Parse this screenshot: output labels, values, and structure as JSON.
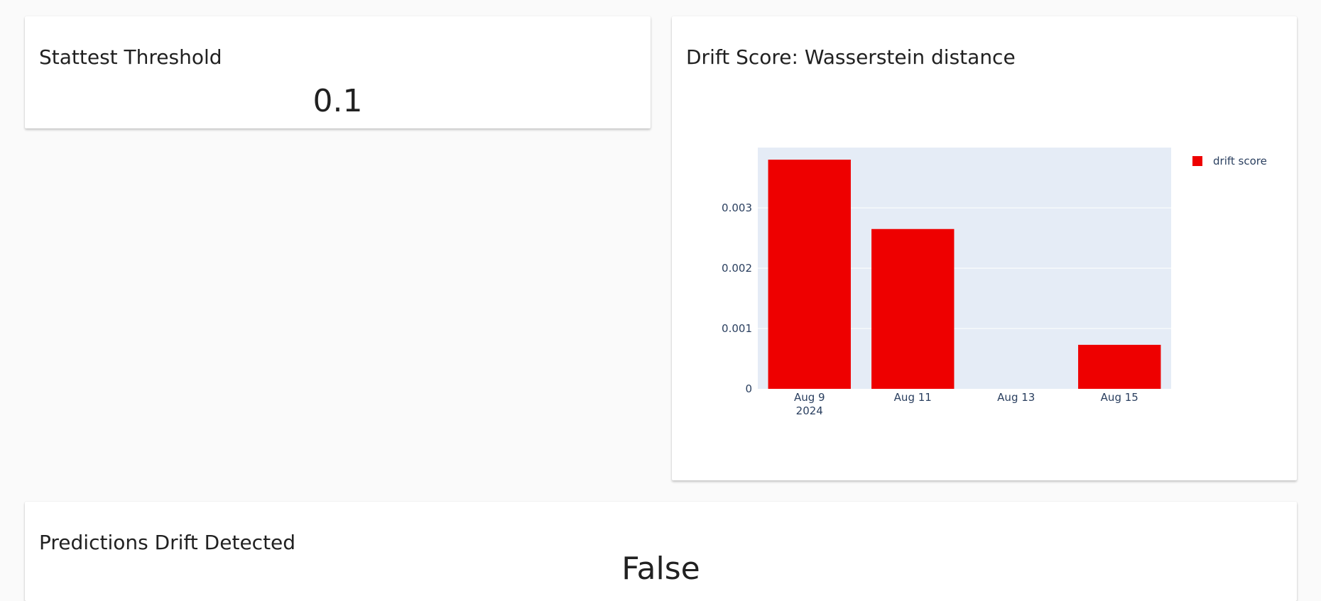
{
  "threshold_panel": {
    "title": "Stattest Threshold",
    "value": "0.1"
  },
  "drift_panel": {
    "title": "Drift Score: Wasserstein distance"
  },
  "detected_panel": {
    "title": "Predictions Drift Detected",
    "value": "False"
  },
  "chart_data": {
    "type": "bar",
    "title": "Drift Score: Wasserstein distance",
    "xlabel": "",
    "ylabel": "",
    "x": [
      "2024-08-09",
      "2024-08-11",
      "2024-08-13",
      "2024-08-15"
    ],
    "xtick_labels": [
      "Aug 9",
      "Aug 11",
      "Aug 13",
      "Aug 15"
    ],
    "xtick_year": "2024",
    "series": [
      {
        "name": "drift score",
        "color": "#ee0000",
        "values": [
          0.0038,
          0.00265,
          0,
          0.00073
        ]
      }
    ],
    "yticks": [
      0,
      0.001,
      0.002,
      0.003
    ],
    "ytick_labels": [
      "0",
      "0.001",
      "0.002",
      "0.003"
    ],
    "ylim": [
      0,
      0.004
    ],
    "xlim": [
      "2024-08-08",
      "2024-08-16"
    ],
    "legend": "top-right",
    "grid": true,
    "plot_background": "#e5ecf6"
  }
}
